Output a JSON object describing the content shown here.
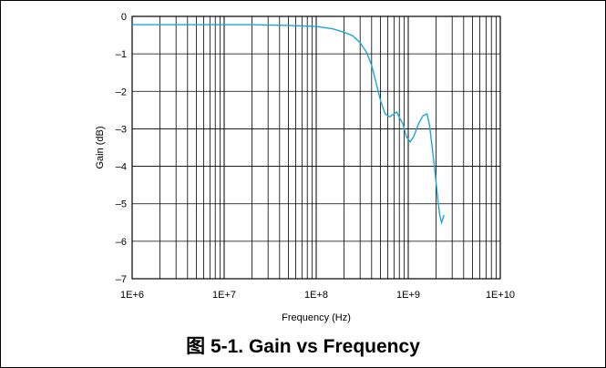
{
  "caption": "图 5-1. Gain vs Frequency",
  "colors": {
    "series": "#1aa7d8",
    "grid": "#000000"
  },
  "chart_data": {
    "type": "line",
    "title": "",
    "xlabel": "Frequency (Hz)",
    "ylabel": "Gain (dB)",
    "x_scale": "log",
    "xlim": [
      1000000,
      10000000000
    ],
    "ylim": [
      -7,
      0
    ],
    "x_ticks": [
      {
        "value": 1000000,
        "label": "1E+6"
      },
      {
        "value": 10000000,
        "label": "1E+7"
      },
      {
        "value": 100000000,
        "label": "1E+8"
      },
      {
        "value": 1000000000,
        "label": "1E+9"
      },
      {
        "value": 10000000000,
        "label": "1E+10"
      }
    ],
    "y_ticks": [
      {
        "value": 0,
        "label": "0"
      },
      {
        "value": -1,
        "label": "–1"
      },
      {
        "value": -2,
        "label": "–2"
      },
      {
        "value": -3,
        "label": "–3"
      },
      {
        "value": -4,
        "label": "–4"
      },
      {
        "value": -5,
        "label": "–5"
      },
      {
        "value": -6,
        "label": "–6"
      },
      {
        "value": -7,
        "label": "–7"
      }
    ],
    "grid": true,
    "series": [
      {
        "values": [
          [
            1000000,
            -0.22
          ],
          [
            10000000,
            -0.22
          ],
          [
            20000000,
            -0.22
          ],
          [
            50000000,
            -0.24
          ],
          [
            100000000,
            -0.27
          ],
          [
            150000000,
            -0.33
          ],
          [
            200000000,
            -0.42
          ],
          [
            250000000,
            -0.52
          ],
          [
            300000000,
            -0.7
          ],
          [
            350000000,
            -0.95
          ],
          [
            400000000,
            -1.3
          ],
          [
            450000000,
            -1.8
          ],
          [
            500000000,
            -2.25
          ],
          [
            560000000,
            -2.6
          ],
          [
            630000000,
            -2.68
          ],
          [
            700000000,
            -2.6
          ],
          [
            750000000,
            -2.55
          ],
          [
            800000000,
            -2.7
          ],
          [
            870000000,
            -2.85
          ],
          [
            950000000,
            -3.2
          ],
          [
            1050000000,
            -3.35
          ],
          [
            1150000000,
            -3.2
          ],
          [
            1300000000,
            -2.85
          ],
          [
            1450000000,
            -2.65
          ],
          [
            1600000000,
            -2.6
          ],
          [
            1700000000,
            -2.9
          ],
          [
            1800000000,
            -3.4
          ],
          [
            1900000000,
            -3.9
          ],
          [
            2000000000,
            -4.4
          ],
          [
            2100000000,
            -4.9
          ],
          [
            2200000000,
            -5.3
          ],
          [
            2300000000,
            -5.5
          ],
          [
            2450000000,
            -5.3
          ]
        ]
      }
    ]
  }
}
